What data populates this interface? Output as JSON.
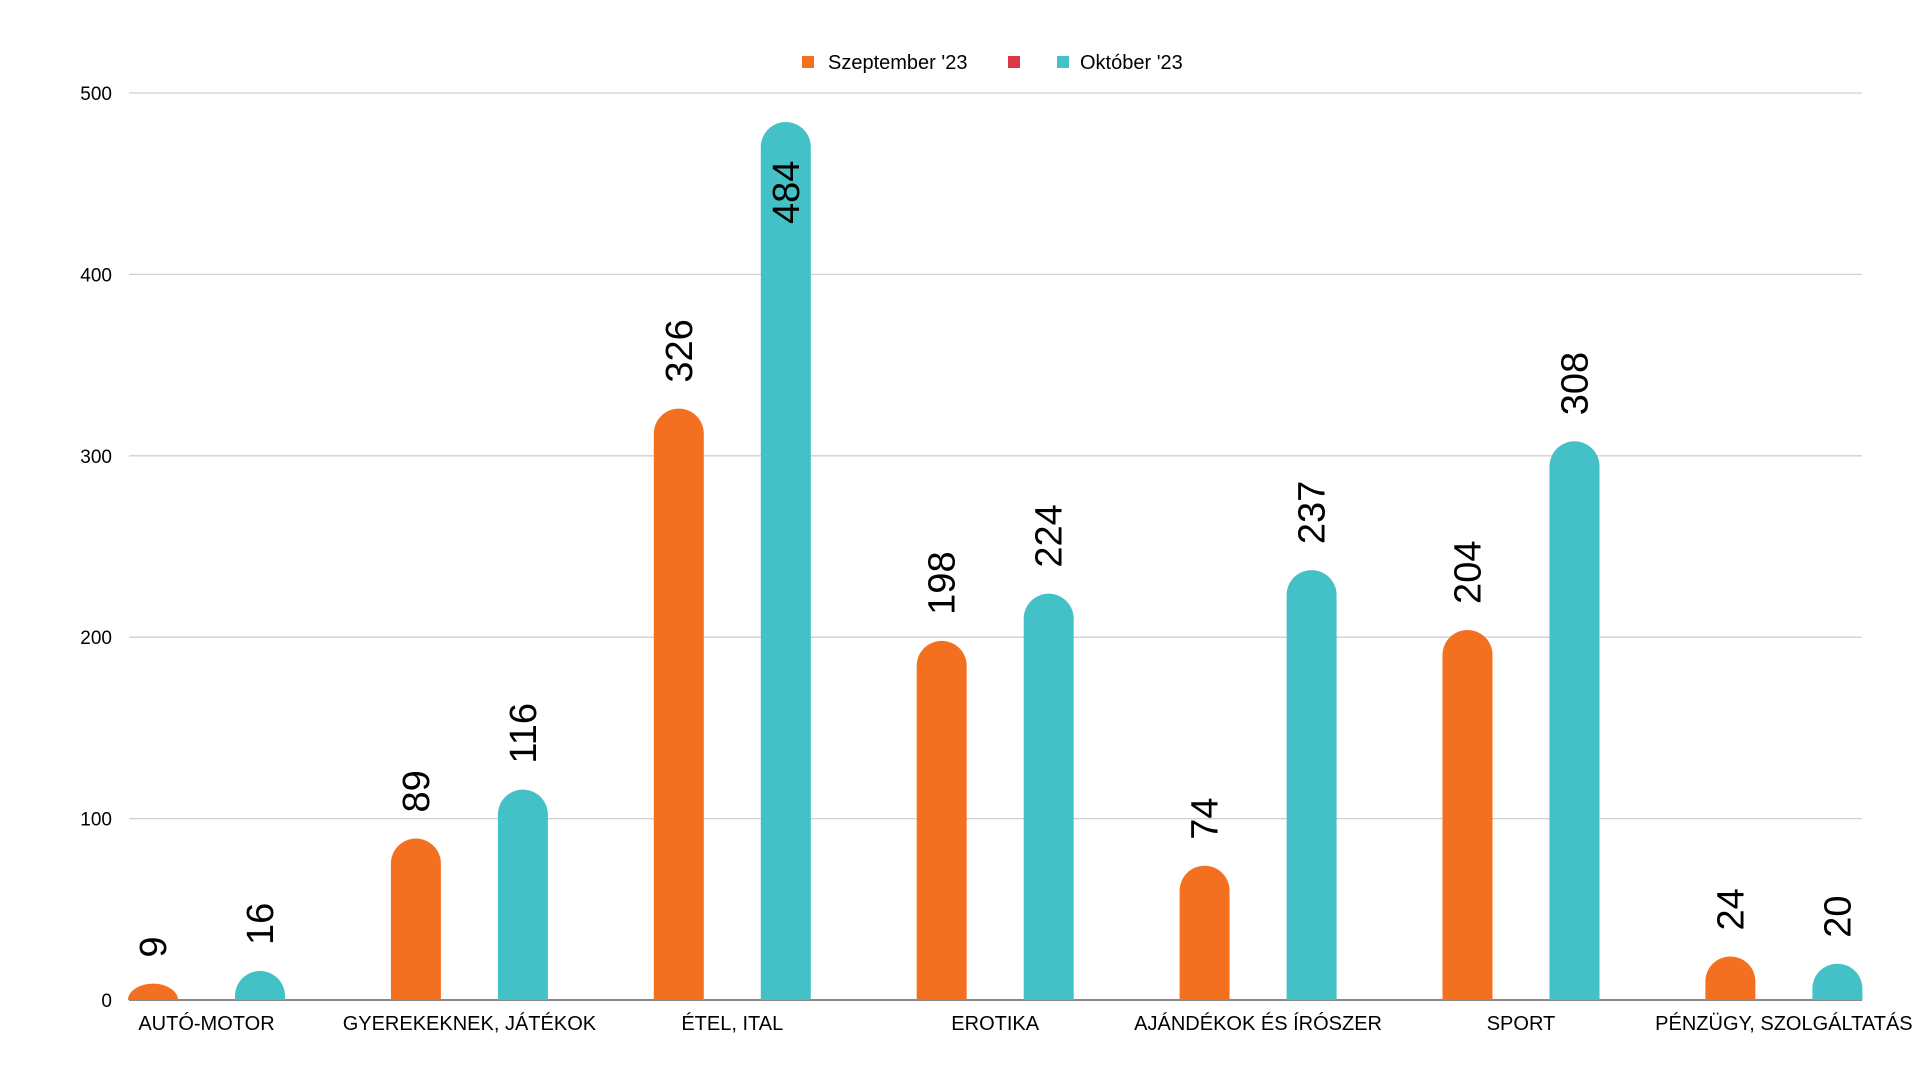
{
  "chart_data": {
    "type": "bar",
    "title": "",
    "xlabel": "",
    "ylabel": "",
    "ylim": [
      0,
      500
    ],
    "yticks": [
      0,
      100,
      200,
      300,
      400,
      500
    ],
    "grid": true,
    "legend_position": "top-center",
    "categories": [
      "AUTÓ-MOTOR",
      "GYEREKEKNEK, JÁTÉKOK",
      "ÉTEL, ITAL",
      "EROTIKA",
      "AJÁNDÉKOK ÉS ÍRÓSZER",
      "SPORT",
      "PÉNZÜGY, SZOLGÁLTATÁS"
    ],
    "legend": [
      {
        "name": "Szeptember '23",
        "color": "#f37021"
      },
      {
        "name": "",
        "color": "#dc3545"
      },
      {
        "name": "Október '23",
        "color": "#43c1c6"
      }
    ],
    "series": [
      {
        "name": "Szeptember '23",
        "color": "#f37021",
        "values": [
          9,
          89,
          326,
          198,
          74,
          204,
          24
        ]
      },
      {
        "name": "Október '23",
        "color": "#43c1c6",
        "values": [
          16,
          116,
          484,
          224,
          237,
          308,
          20
        ]
      }
    ]
  }
}
